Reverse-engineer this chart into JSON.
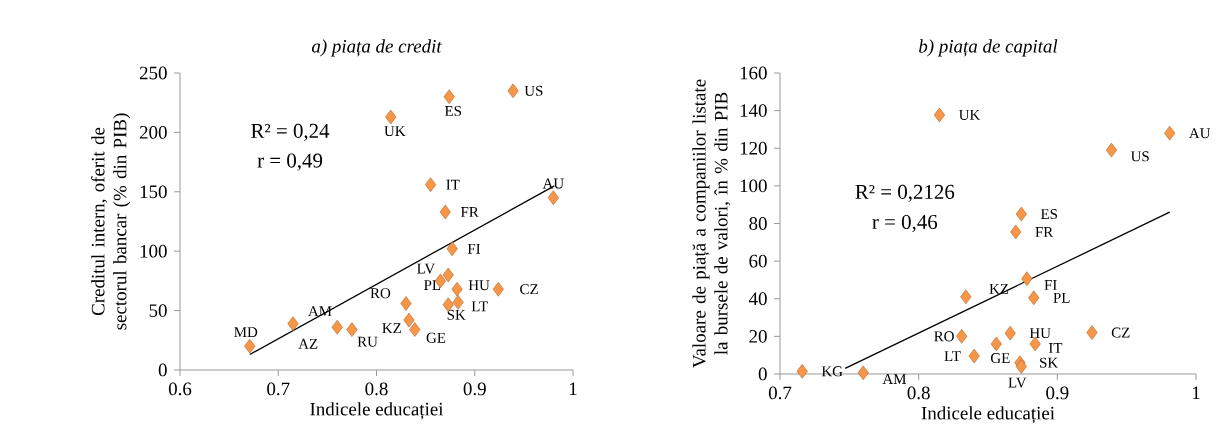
{
  "chart_data": [
    {
      "type": "scatter",
      "title": "a)  piața de credit",
      "xlabel": "Indicele educației",
      "ylabel": "Creditul intern, oferit de sectorul bancar (% din PIB)",
      "xlim": [
        0.6,
        1.0
      ],
      "ylim": [
        0,
        250
      ],
      "xticks": [
        0.6,
        0.7,
        0.8,
        0.9,
        1
      ],
      "yticks": [
        0,
        50,
        100,
        150,
        200,
        250
      ],
      "marker": "diamond",
      "grid": false,
      "series": [
        {
          "color": "#f79646",
          "x": [
            0.671,
            0.715,
            0.76,
            0.775,
            0.83,
            0.833,
            0.839,
            0.8145,
            0.874,
            0.939,
            0.855,
            0.87,
            0.877,
            0.865,
            0.873,
            0.882,
            0.873,
            0.883,
            0.924,
            0.98
          ],
          "values": [
            20,
            39,
            36,
            34,
            56,
            42,
            34,
            213,
            230,
            235,
            156,
            133,
            102,
            75,
            80,
            68,
            55,
            57,
            68,
            145
          ]
        },
        {
          "type": "line",
          "marker": "none",
          "color": "#000000",
          "x": [
            0.671,
            0.981
          ],
          "values": [
            13,
            155
          ]
        }
      ],
      "annotations": [
        "R² = 0,24",
        "r = 0,49",
        {
          "text": "AZ",
          "x": 0.715,
          "y": 39
        },
        {
          "text": "MD",
          "x": 0.671,
          "y": 20
        },
        {
          "text": "AM",
          "x": 0.76,
          "y": 36
        },
        {
          "text": "RU",
          "x": 0.775,
          "y": 34
        },
        {
          "text": "RO",
          "x": 0.83,
          "y": 56
        },
        {
          "text": "KZ",
          "x": 0.833,
          "y": 42
        },
        {
          "text": "GE",
          "x": 0.839,
          "y": 34
        },
        {
          "text": "UK",
          "x": 0.8145,
          "y": 213
        },
        {
          "text": "ES",
          "x": 0.874,
          "y": 230
        },
        {
          "text": "US",
          "x": 0.939,
          "y": 235
        },
        {
          "text": "IT",
          "x": 0.855,
          "y": 156
        },
        {
          "text": "FR",
          "x": 0.87,
          "y": 133
        },
        {
          "text": "FI",
          "x": 0.877,
          "y": 102
        },
        {
          "text": "LV",
          "x": 0.865,
          "y": 75
        },
        {
          "text": "PL",
          "x": 0.873,
          "y": 80
        },
        {
          "text": "HU",
          "x": 0.882,
          "y": 68
        },
        {
          "text": "SK",
          "x": 0.873,
          "y": 55
        },
        {
          "text": "LT",
          "x": 0.883,
          "y": 57
        },
        {
          "text": "CZ",
          "x": 0.924,
          "y": 68
        },
        {
          "text": "AU",
          "x": 0.98,
          "y": 145
        }
      ]
    },
    {
      "type": "scatter",
      "title": "b)  piața de capital",
      "xlabel": "Indicele educației",
      "ylabel": "Valoare de piață a companiilor listate la bursele de valori, în % din PIB",
      "xlim": [
        0.7,
        1.0
      ],
      "ylim": [
        0,
        160
      ],
      "xticks": [
        0.7,
        0.8,
        0.9,
        1
      ],
      "yticks": [
        0,
        20,
        40,
        60,
        80,
        100,
        120,
        140,
        160
      ],
      "marker": "diamond",
      "grid": false,
      "series": [
        {
          "color": "#f79646",
          "x": [
            0.716,
            0.76,
            0.815,
            0.939,
            0.981,
            0.874,
            0.87,
            0.878,
            0.834,
            0.883,
            0.831,
            0.866,
            0.856,
            0.884,
            0.84,
            0.925,
            0.873,
            0.874
          ],
          "values": [
            1.4,
            0.6,
            137.7,
            119,
            128,
            85,
            75.5,
            50.6,
            41,
            40.5,
            20,
            21.7,
            16,
            16,
            9.5,
            22,
            6,
            4
          ]
        },
        {
          "type": "line",
          "marker": "none",
          "color": "#000000",
          "x": [
            0.747,
            0.981
          ],
          "values": [
            3,
            86
          ]
        }
      ],
      "annotations": [
        "R² = 0,2126",
        "r = 0,46",
        {
          "text": "KG",
          "x": 0.716,
          "y": 1.4
        },
        {
          "text": "AM",
          "x": 0.76,
          "y": 0.6
        },
        {
          "text": "UK",
          "x": 0.815,
          "y": 137.7
        },
        {
          "text": "US",
          "x": 0.939,
          "y": 119
        },
        {
          "text": "AU",
          "x": 0.981,
          "y": 128
        },
        {
          "text": "ES",
          "x": 0.874,
          "y": 85
        },
        {
          "text": "FR",
          "x": 0.87,
          "y": 75.5
        },
        {
          "text": "FI",
          "x": 0.878,
          "y": 50.6
        },
        {
          "text": "KZ",
          "x": 0.834,
          "y": 41
        },
        {
          "text": "PL",
          "x": 0.883,
          "y": 40.5
        },
        {
          "text": "RO",
          "x": 0.831,
          "y": 20
        },
        {
          "text": "HU",
          "x": 0.866,
          "y": 21.7
        },
        {
          "text": "GE",
          "x": 0.856,
          "y": 16
        },
        {
          "text": "IT",
          "x": 0.884,
          "y": 16
        },
        {
          "text": "LT",
          "x": 0.84,
          "y": 9.5
        },
        {
          "text": "CZ",
          "x": 0.925,
          "y": 22
        },
        {
          "text": "SK",
          "x": 0.873,
          "y": 6
        },
        {
          "text": "LV",
          "x": 0.874,
          "y": 4
        }
      ]
    }
  ]
}
